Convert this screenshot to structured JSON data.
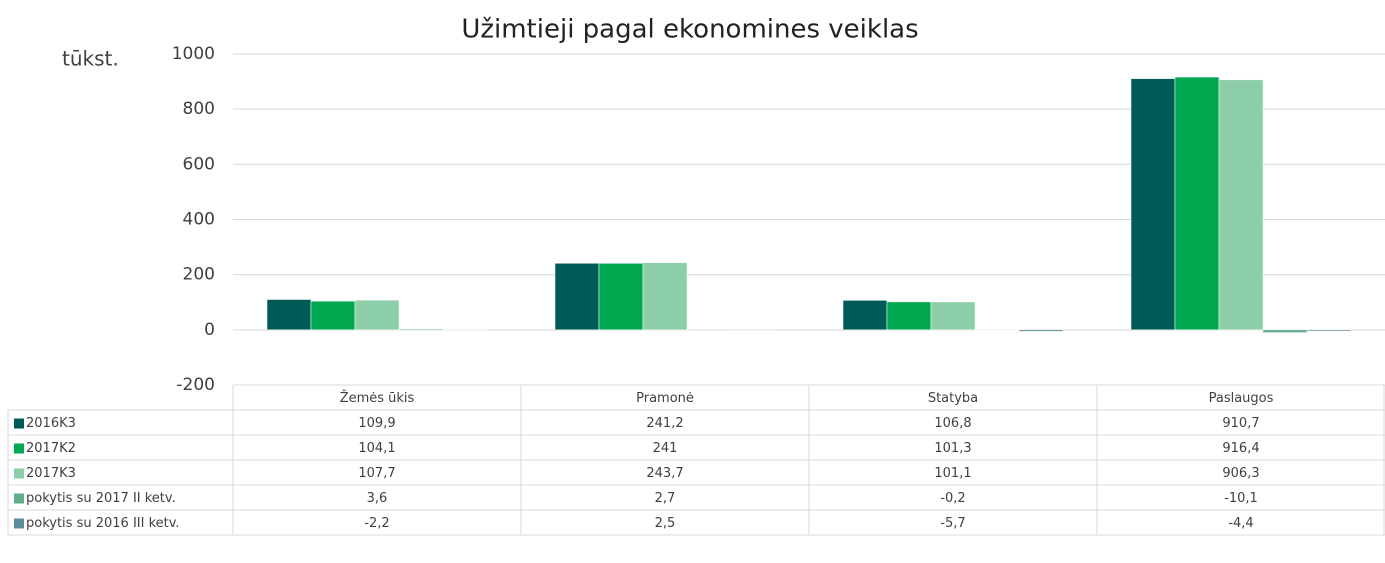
{
  "chart_data": {
    "type": "bar",
    "title": "Užimtieji pagal ekonomines veiklas",
    "y_axis_label": "tūkst.",
    "categories": [
      "Žemės ūkis",
      "Pramonė",
      "Statyba",
      "Paslaugos"
    ],
    "series": [
      {
        "name": "2016K3",
        "color": "#005a58",
        "values": [
          109.9,
          241.2,
          106.8,
          910.7
        ],
        "value_labels": [
          "109,9",
          "241,2",
          "106,8",
          "910,7"
        ]
      },
      {
        "name": "2017K2",
        "color": "#00a84f",
        "values": [
          104.1,
          241,
          101.3,
          916.4
        ],
        "value_labels": [
          "104,1",
          "241",
          "101,3",
          "916,4"
        ]
      },
      {
        "name": "2017K3",
        "color": "#8ccea8",
        "values": [
          107.7,
          243.7,
          101.1,
          906.3
        ],
        "value_labels": [
          "107,7",
          "243,7",
          "101,1",
          "906,3"
        ]
      },
      {
        "name": "pokytis su 2017 II ketv.",
        "color": "#62ad8c",
        "values": [
          3.6,
          2.7,
          -0.2,
          -10.1
        ],
        "value_labels": [
          "3,6",
          "2,7",
          "-0,2",
          "-10,1"
        ]
      },
      {
        "name": "pokytis su 2016 III ketv.",
        "color": "#5b8c9b",
        "values": [
          -2.2,
          2.5,
          -5.7,
          -4.4
        ],
        "value_labels": [
          "-2,2",
          "2,5",
          "-5,7",
          "-4,4"
        ]
      }
    ],
    "ylim": [
      -200,
      1000
    ],
    "yticks": [
      -200,
      0,
      200,
      400,
      600,
      800,
      1000
    ],
    "grid": true
  }
}
